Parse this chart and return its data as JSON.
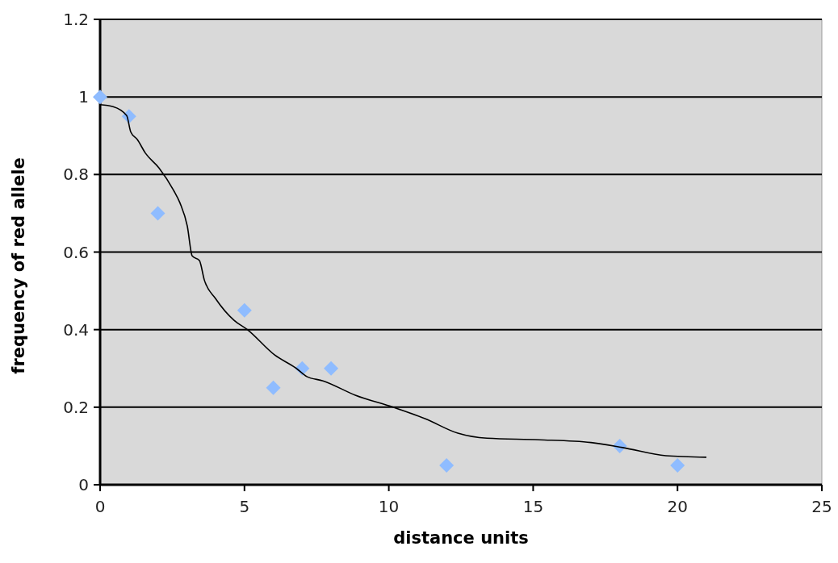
{
  "chart_data": {
    "type": "scatter",
    "xlabel": "distance units",
    "ylabel": "frequency of red allele",
    "xlim": [
      0,
      25
    ],
    "xticks": [
      0,
      5,
      10,
      15,
      20,
      25
    ],
    "ylim": [
      0,
      1.2
    ],
    "yticks": [
      0,
      0.2,
      0.4,
      0.6,
      0.8,
      1,
      1.2
    ],
    "grid": "y",
    "marker": "diamond",
    "series": [
      {
        "color": "#8fbcff",
        "x": [
          0,
          1,
          2,
          5,
          6,
          7,
          8,
          12,
          18,
          20
        ],
        "values": [
          1,
          0.95,
          0.7,
          0.45,
          0.25,
          0.3,
          0.3,
          0.05,
          0.1,
          0.05
        ]
      },
      {
        "type": "line",
        "color": "#000000",
        "marker": "none",
        "line_style": "solid",
        "x": [
          0,
          0.45,
          0.92,
          1.06,
          1.29,
          1.57,
          2.04,
          2.54,
          2.77,
          3.02,
          3.19,
          3.44,
          3.61,
          4.0,
          4.64,
          5.1,
          6.04,
          6.8,
          7.16,
          7.72,
          8.84,
          10.15,
          11.27,
          12.39,
          13.4,
          15.2,
          17.0,
          18.1,
          19.6,
          21.0
        ],
        "values": [
          0.98,
          0.975,
          0.952,
          0.91,
          0.89,
          0.855,
          0.817,
          0.76,
          0.726,
          0.667,
          0.59,
          0.578,
          0.528,
          0.48,
          0.424,
          0.4,
          0.335,
          0.3,
          0.279,
          0.268,
          0.231,
          0.2,
          0.17,
          0.133,
          0.12,
          0.116,
          0.109,
          0.096,
          0.075,
          0.071
        ]
      }
    ]
  }
}
